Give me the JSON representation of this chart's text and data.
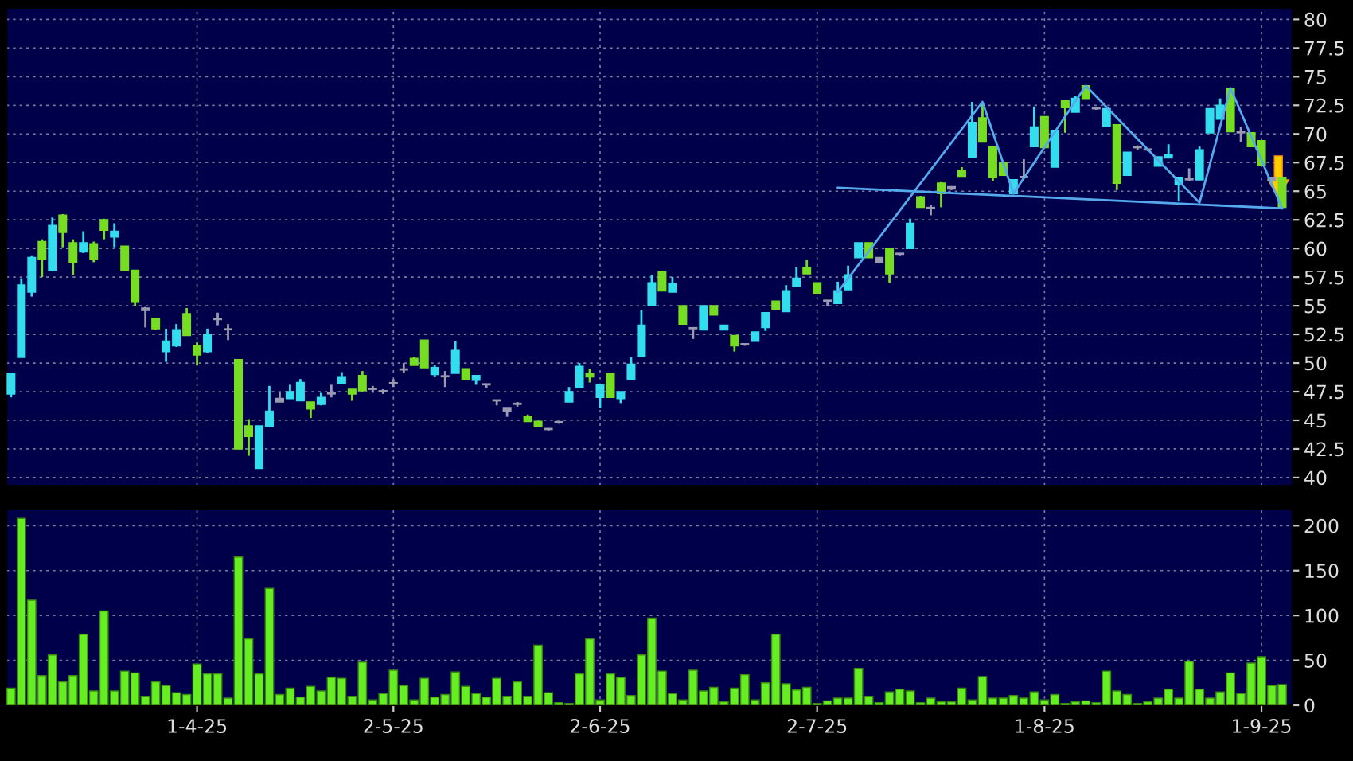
{
  "chart_data": [
    {
      "type": "candlestick",
      "categories": [
        null,
        null,
        null,
        null,
        null,
        null,
        null,
        null,
        null,
        null,
        null,
        null,
        null,
        null,
        null,
        null,
        null,
        null,
        null,
        null,
        null,
        null,
        null,
        null,
        null,
        null,
        null,
        null,
        null,
        null,
        null,
        null,
        null,
        null,
        null,
        null,
        null,
        null,
        null,
        null,
        null,
        null,
        null,
        null,
        null,
        null,
        null,
        null,
        null,
        null,
        null,
        null,
        null,
        null,
        null,
        null,
        null,
        null,
        null,
        null,
        null,
        null,
        null,
        null,
        null,
        null,
        null,
        null,
        null,
        null,
        null,
        null,
        null,
        null,
        null,
        null,
        null,
        null,
        null,
        null,
        null,
        null,
        null,
        null,
        null,
        null,
        null,
        null,
        null,
        null,
        null,
        null,
        null,
        null,
        null,
        null,
        null,
        null,
        null,
        null,
        null,
        null,
        null,
        null,
        null,
        null,
        null,
        null,
        null,
        null,
        null,
        null,
        null,
        null,
        null,
        null,
        null,
        null,
        null,
        null,
        null,
        null,
        null,
        null
      ],
      "ohlc": [
        [
          47.3,
          49.1,
          47.0,
          49.1
        ],
        [
          50.5,
          57.4,
          50.5,
          56.8
        ],
        [
          56.2,
          59.4,
          55.8,
          59.2
        ],
        [
          60.6,
          60.8,
          57.5,
          59.1
        ],
        [
          58.1,
          62.7,
          58.0,
          62.0
        ],
        [
          62.9,
          63.0,
          60.1,
          61.4
        ],
        [
          60.5,
          60.8,
          57.7,
          58.8
        ],
        [
          59.7,
          61.5,
          59.6,
          60.5
        ],
        [
          60.4,
          60.6,
          58.8,
          59.1
        ],
        [
          62.5,
          62.6,
          60.8,
          61.6
        ],
        [
          61.0,
          62.2,
          60.1,
          61.5
        ],
        [
          60.2,
          60.2,
          58.1,
          58.1
        ],
        [
          58.1,
          58.1,
          55.0,
          55.3
        ],
        [
          54.6,
          54.9,
          53.1,
          54.8
        ],
        [
          53.9,
          53.9,
          52.9,
          53.0
        ],
        [
          51.0,
          53.0,
          50.1,
          51.9
        ],
        [
          51.5,
          53.4,
          51.4,
          52.9
        ],
        [
          54.3,
          54.8,
          52.4,
          52.4
        ],
        [
          51.5,
          51.8,
          49.8,
          50.7
        ],
        [
          51.0,
          53.0,
          50.9,
          52.5
        ],
        [
          53.8,
          54.4,
          53.3,
          53.8
        ],
        [
          52.9,
          53.4,
          52.0,
          52.9
        ],
        [
          50.3,
          50.3,
          42.5,
          42.5
        ],
        [
          44.5,
          45.1,
          41.9,
          43.6
        ],
        [
          40.8,
          44.5,
          40.8,
          44.5
        ],
        [
          44.5,
          48.0,
          44.5,
          45.8
        ],
        [
          46.6,
          47.5,
          46.6,
          46.9
        ],
        [
          46.9,
          48.1,
          46.9,
          47.5
        ],
        [
          46.7,
          48.6,
          46.7,
          48.3
        ],
        [
          46.6,
          46.6,
          45.2,
          46.0
        ],
        [
          46.4,
          47.4,
          46.3,
          47.0
        ],
        [
          47.3,
          48.1,
          47.0,
          47.3
        ],
        [
          48.2,
          49.2,
          48.2,
          48.8
        ],
        [
          47.7,
          47.7,
          46.7,
          47.3
        ],
        [
          48.9,
          49.3,
          47.5,
          47.6
        ],
        [
          47.7,
          48.0,
          47.4,
          47.7
        ],
        [
          47.5,
          47.7,
          47.3,
          47.5
        ],
        [
          48.2,
          48.6,
          47.9,
          48.2
        ],
        [
          49.4,
          50.0,
          49.1,
          49.4
        ],
        [
          50.4,
          50.5,
          49.8,
          49.8
        ],
        [
          52.0,
          52.0,
          49.6,
          49.6
        ],
        [
          49.0,
          49.8,
          48.8,
          49.6
        ],
        [
          48.8,
          49.3,
          47.9,
          48.8
        ],
        [
          49.1,
          51.9,
          49.1,
          51.1
        ],
        [
          49.5,
          49.5,
          48.6,
          48.6
        ],
        [
          48.5,
          48.9,
          48.1,
          48.9
        ],
        [
          48.1,
          48.2,
          47.8,
          48.1
        ],
        [
          46.7,
          46.8,
          46.3,
          46.7
        ],
        [
          45.8,
          46.1,
          45.3,
          46.1
        ],
        [
          46.4,
          46.6,
          46.2,
          46.4
        ],
        [
          45.3,
          45.5,
          44.9,
          44.9
        ],
        [
          44.9,
          44.9,
          44.5,
          44.5
        ],
        [
          44.2,
          44.3,
          44.1,
          44.2
        ],
        [
          44.8,
          44.9,
          44.7,
          44.8
        ],
        [
          46.6,
          47.9,
          46.6,
          47.5
        ],
        [
          47.9,
          50.0,
          47.9,
          49.7
        ],
        [
          49.1,
          49.5,
          48.3,
          48.8
        ],
        [
          47.0,
          48.1,
          46.1,
          48.1
        ],
        [
          49.1,
          49.1,
          47.0,
          47.0
        ],
        [
          46.9,
          47.5,
          46.5,
          47.5
        ],
        [
          48.6,
          50.5,
          48.6,
          49.9
        ],
        [
          50.6,
          54.6,
          50.6,
          53.3
        ],
        [
          55.0,
          57.7,
          55.0,
          57.0
        ],
        [
          58.0,
          58.0,
          56.3,
          56.3
        ],
        [
          56.2,
          57.5,
          56.2,
          56.9
        ],
        [
          55.0,
          55.0,
          53.4,
          53.4
        ],
        [
          53.0,
          53.1,
          52.1,
          53.0
        ],
        [
          52.9,
          55.0,
          52.9,
          55.0
        ],
        [
          55.0,
          55.0,
          54.2,
          54.2
        ],
        [
          52.9,
          53.3,
          52.9,
          53.3
        ],
        [
          52.4,
          52.4,
          51.0,
          51.5
        ],
        [
          51.6,
          51.7,
          51.5,
          51.6
        ],
        [
          51.9,
          52.7,
          51.9,
          52.7
        ],
        [
          53.1,
          54.4,
          52.8,
          54.4
        ],
        [
          55.4,
          55.4,
          54.7,
          54.7
        ],
        [
          54.5,
          56.8,
          54.5,
          56.3
        ],
        [
          56.7,
          58.4,
          56.7,
          57.4
        ],
        [
          58.3,
          59.0,
          57.8,
          57.8
        ],
        [
          57.0,
          57.0,
          56.1,
          56.1
        ],
        [
          55.4,
          55.5,
          55.0,
          55.4
        ],
        [
          55.2,
          57.1,
          55.2,
          56.3
        ],
        [
          56.4,
          58.5,
          56.4,
          57.7
        ],
        [
          59.2,
          60.5,
          59.2,
          60.5
        ],
        [
          60.5,
          60.5,
          59.2,
          59.2
        ],
        [
          58.8,
          59.2,
          58.7,
          59.2
        ],
        [
          60.0,
          60.0,
          57.0,
          57.8
        ],
        [
          59.5,
          59.6,
          59.4,
          59.5
        ],
        [
          60.0,
          62.6,
          60.0,
          62.2
        ],
        [
          64.5,
          64.6,
          63.6,
          63.6
        ],
        [
          63.5,
          63.8,
          62.9,
          63.5
        ],
        [
          65.7,
          65.8,
          63.6,
          64.8
        ],
        [
          65.2,
          65.4,
          65.1,
          65.4
        ],
        [
          66.8,
          67.1,
          66.3,
          66.3
        ],
        [
          68.0,
          72.8,
          68.0,
          71.0
        ],
        [
          71.4,
          72.6,
          69.3,
          69.3
        ],
        [
          68.9,
          68.9,
          65.9,
          66.2
        ],
        [
          67.5,
          67.5,
          66.4,
          66.4
        ],
        [
          64.8,
          66.0,
          64.8,
          66.0
        ],
        [
          66.2,
          67.8,
          66.1,
          66.2
        ],
        [
          68.9,
          72.4,
          68.9,
          70.6
        ],
        [
          71.5,
          71.5,
          68.8,
          68.8
        ],
        [
          67.1,
          70.3,
          67.1,
          70.3
        ],
        [
          72.9,
          72.9,
          70.1,
          72.3
        ],
        [
          71.9,
          73.3,
          71.9,
          73.1
        ],
        [
          74.2,
          74.2,
          73.1,
          73.1
        ],
        [
          72.2,
          72.3,
          72.1,
          72.2
        ],
        [
          70.7,
          72.2,
          70.7,
          72.2
        ],
        [
          70.8,
          70.8,
          65.1,
          65.7
        ],
        [
          66.4,
          68.4,
          66.4,
          68.4
        ],
        [
          68.8,
          69.0,
          68.6,
          68.8
        ],
        [
          68.6,
          68.7,
          68.5,
          68.6
        ],
        [
          67.2,
          68.0,
          67.2,
          68.0
        ],
        [
          67.9,
          69.1,
          67.9,
          68.2
        ],
        [
          65.6,
          66.2,
          64.1,
          66.2
        ],
        [
          66.0,
          67.0,
          65.9,
          66.0
        ],
        [
          66.0,
          68.9,
          66.0,
          68.6
        ],
        [
          70.1,
          72.2,
          70.1,
          72.2
        ],
        [
          71.3,
          73.1,
          71.3,
          72.5
        ],
        [
          74.0,
          74.0,
          70.2,
          70.2
        ],
        [
          70.1,
          70.6,
          69.3,
          70.1
        ],
        [
          70.1,
          70.1,
          68.9,
          68.9
        ],
        [
          69.4,
          69.4,
          67.3,
          67.3
        ],
        [
          65.9,
          66.2,
          65.4,
          66.2
        ],
        [
          66.2,
          66.2,
          63.6,
          63.6
        ]
      ],
      "colors": [
        "#33ddee",
        "#33ddee",
        "#33ddee",
        "#77dd22",
        "#33ddee",
        "#77dd22",
        "#77dd22",
        "#33ddee",
        "#77dd22",
        "#77dd22",
        "#33ddee",
        "#77dd22",
        "#77dd22",
        "#9a9ab0",
        "#77dd22",
        "#33ddee",
        "#33ddee",
        "#77dd22",
        "#77dd22",
        "#33ddee",
        "#9a9ab0",
        "#9a9ab0",
        "#77dd22",
        "#77dd22",
        "#33ddee",
        "#33ddee",
        "#9a9ab0",
        "#33ddee",
        "#33ddee",
        "#77dd22",
        "#33ddee",
        "#9a9ab0",
        "#33ddee",
        "#77dd22",
        "#77dd22",
        "#9a9ab0",
        "#9a9ab0",
        "#9a9ab0",
        "#9a9ab0",
        "#77dd22",
        "#77dd22",
        "#33ddee",
        "#9a9ab0",
        "#33ddee",
        "#77dd22",
        "#33ddee",
        "#9a9ab0",
        "#9a9ab0",
        "#9a9ab0",
        "#9a9ab0",
        "#77dd22",
        "#77dd22",
        "#9a9ab0",
        "#9a9ab0",
        "#33ddee",
        "#33ddee",
        "#77dd22",
        "#33ddee",
        "#77dd22",
        "#33ddee",
        "#33ddee",
        "#33ddee",
        "#33ddee",
        "#77dd22",
        "#33ddee",
        "#77dd22",
        "#9a9ab0",
        "#33ddee",
        "#77dd22",
        "#33ddee",
        "#77dd22",
        "#9a9ab0",
        "#33ddee",
        "#33ddee",
        "#77dd22",
        "#33ddee",
        "#33ddee",
        "#77dd22",
        "#77dd22",
        "#9a9ab0",
        "#33ddee",
        "#33ddee",
        "#33ddee",
        "#77dd22",
        "#9a9ab0",
        "#77dd22",
        "#9a9ab0",
        "#33ddee",
        "#77dd22",
        "#9a9ab0",
        "#77dd22",
        "#9a9ab0",
        "#77dd22",
        "#33ddee",
        "#77dd22",
        "#77dd22",
        "#77dd22",
        "#33ddee",
        "#9a9ab0",
        "#33ddee",
        "#77dd22",
        "#33ddee",
        "#77dd22",
        "#33ddee",
        "#77dd22",
        "#9a9ab0",
        "#33ddee",
        "#77dd22",
        "#33ddee",
        "#9a9ab0",
        "#9a9ab0",
        "#33ddee",
        "#33ddee",
        "#33ddee",
        "#9a9ab0",
        "#33ddee",
        "#33ddee",
        "#33ddee",
        "#77dd22",
        "#9a9ab0",
        "#77dd22",
        "#77dd22",
        "#9a9ab0",
        "#77dd22"
      ],
      "series": [
        {
          "type": "line",
          "color": "#55aaee",
          "values": [
            null,
            null,
            null,
            null,
            null,
            null,
            null,
            null,
            null,
            null,
            null,
            null,
            null,
            null,
            null,
            null,
            null,
            null,
            null,
            null,
            null,
            null,
            null,
            null,
            null,
            null,
            null,
            null,
            null,
            null,
            null,
            null,
            null,
            null,
            null,
            null,
            null,
            null,
            null,
            null,
            null,
            null,
            null,
            null,
            null,
            null,
            null,
            null,
            null,
            null,
            null,
            null,
            null,
            null,
            null,
            null,
            null,
            null,
            null,
            null,
            null,
            null,
            null,
            null,
            null,
            null,
            null,
            null,
            null,
            null,
            null,
            null,
            null,
            null,
            null,
            null,
            null,
            null,
            null,
            null,
            56.2,
            null,
            null,
            null,
            null,
            null,
            null,
            null,
            null,
            null,
            null,
            null,
            null,
            null,
            72.8,
            null,
            null,
            64.8,
            null,
            null,
            null,
            null,
            null,
            null,
            74.2,
            null,
            null,
            null,
            null,
            null,
            null,
            null,
            null,
            null,
            null,
            64.0,
            null,
            null,
            74.0,
            null,
            null,
            null,
            null,
            63.5
          ]
        },
        {
          "type": "line",
          "color": "#55aaee",
          "values": [
            null,
            null,
            null,
            null,
            null,
            null,
            null,
            null,
            null,
            null,
            null,
            null,
            null,
            null,
            null,
            null,
            null,
            null,
            null,
            null,
            null,
            null,
            null,
            null,
            null,
            null,
            null,
            null,
            null,
            null,
            null,
            null,
            null,
            null,
            null,
            null,
            null,
            null,
            null,
            null,
            null,
            null,
            null,
            null,
            null,
            null,
            null,
            null,
            null,
            null,
            null,
            null,
            null,
            null,
            null,
            null,
            null,
            null,
            null,
            null,
            null,
            null,
            null,
            null,
            null,
            null,
            null,
            null,
            null,
            null,
            null,
            null,
            null,
            null,
            null,
            null,
            null,
            null,
            null,
            null,
            65.3,
            null,
            null,
            null,
            null,
            null,
            null,
            null,
            null,
            null,
            null,
            null,
            null,
            null,
            null,
            null,
            null,
            null,
            null,
            null,
            null,
            null,
            null,
            null,
            null,
            null,
            null,
            null,
            null,
            null,
            null,
            null,
            null,
            null,
            null,
            null,
            null,
            null,
            null,
            null,
            null,
            null,
            null,
            63.5
          ]
        }
      ],
      "ylim": [
        39.3,
        81.0
      ],
      "yticks": [
        40,
        42.5,
        45,
        47.5,
        50,
        52.5,
        55,
        57.5,
        60,
        62.5,
        65,
        67.5,
        70,
        72.5,
        75,
        77.5,
        80
      ],
      "grid": true,
      "tick_labels": "y"
    },
    {
      "type": "bar",
      "categories": [
        null,
        null,
        null,
        null,
        null,
        null,
        null,
        null,
        null,
        null,
        null,
        null,
        null,
        null,
        null,
        null,
        null,
        null,
        "1-4-25",
        null,
        null,
        null,
        null,
        null,
        null,
        null,
        null,
        null,
        null,
        null,
        null,
        null,
        null,
        null,
        null,
        null,
        null,
        "2-5-25",
        null,
        null,
        null,
        null,
        null,
        null,
        null,
        null,
        null,
        null,
        null,
        null,
        null,
        null,
        null,
        null,
        null,
        null,
        null,
        "2-6-25",
        null,
        null,
        null,
        null,
        null,
        null,
        null,
        null,
        null,
        null,
        null,
        null,
        null,
        null,
        null,
        null,
        null,
        null,
        null,
        null,
        "2-7-25",
        null,
        null,
        null,
        null,
        null,
        null,
        null,
        null,
        null,
        null,
        null,
        null,
        null,
        null,
        null,
        null,
        null,
        null,
        null,
        null,
        null,
        "1-8-25",
        null,
        null,
        null,
        null,
        null,
        null,
        null,
        null,
        null,
        null,
        null,
        null,
        null,
        null,
        null,
        null,
        null,
        null,
        null,
        null,
        "1-9-25",
        null,
        null
      ],
      "values": [
        19,
        208,
        117,
        33,
        56,
        26,
        33,
        79,
        16,
        105,
        16,
        38,
        36,
        10,
        26,
        22,
        14,
        12,
        46,
        35,
        35,
        8,
        165,
        74,
        35,
        130,
        12,
        19,
        9,
        21,
        16,
        31,
        30,
        10,
        48,
        6,
        13,
        39,
        22,
        6,
        30,
        9,
        12,
        37,
        21,
        13,
        9,
        30,
        10,
        26,
        10,
        67,
        14,
        3,
        2,
        35,
        74,
        6,
        35,
        31,
        11,
        56,
        97,
        38,
        13,
        6,
        39,
        16,
        20,
        4,
        19,
        34,
        6,
        25,
        79,
        24,
        17,
        20,
        2,
        5,
        8,
        8,
        41,
        10,
        3,
        15,
        18,
        16,
        3,
        8,
        4,
        4,
        19,
        6,
        32,
        8,
        8,
        11,
        8,
        15,
        6,
        12,
        2,
        4,
        5,
        3,
        38,
        16,
        12,
        2,
        4,
        8,
        18,
        8,
        49,
        18,
        8,
        15,
        36,
        13,
        47,
        54,
        22,
        23
      ],
      "color": "#66ee22",
      "ylim": [
        0,
        218
      ],
      "yticks": [
        0,
        50,
        100,
        150,
        200
      ],
      "grid": true
    }
  ]
}
